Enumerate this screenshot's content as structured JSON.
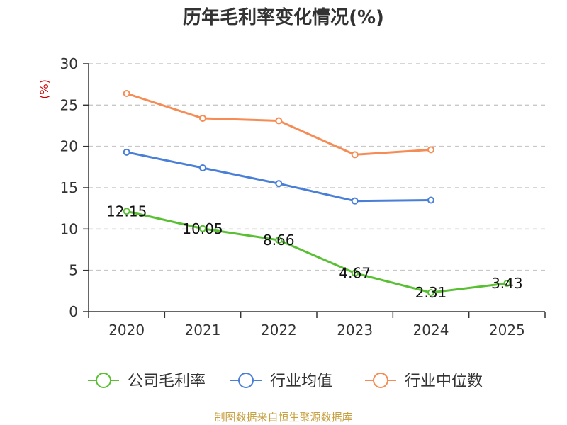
{
  "chart_data": {
    "type": "line",
    "title": "历年毛利率变化情况(%)",
    "ylabel": "(%)",
    "xlabel": "",
    "categories": [
      "2020",
      "2021",
      "2022",
      "2023",
      "2024",
      "2025"
    ],
    "ylim": [
      0,
      30
    ],
    "yticks": [
      0,
      5,
      10,
      15,
      20,
      25,
      30
    ],
    "grid": true,
    "legend_position": "bottom",
    "series": [
      {
        "name": "公司毛利率",
        "color": "#5ac033",
        "values": [
          12.15,
          10.05,
          8.66,
          4.67,
          2.31,
          3.43
        ],
        "labels": [
          "12.15",
          "10.05",
          "8.66",
          "4.67",
          "2.31",
          "3.43"
        ]
      },
      {
        "name": "行业均值",
        "color": "#4a7fd8",
        "values": [
          19.3,
          17.4,
          15.5,
          13.4,
          13.5,
          null
        ]
      },
      {
        "name": "行业中位数",
        "color": "#f68c55",
        "values": [
          26.4,
          23.4,
          23.1,
          19.0,
          19.6,
          null
        ]
      }
    ],
    "source": "制图数据来自恒生聚源数据库"
  }
}
